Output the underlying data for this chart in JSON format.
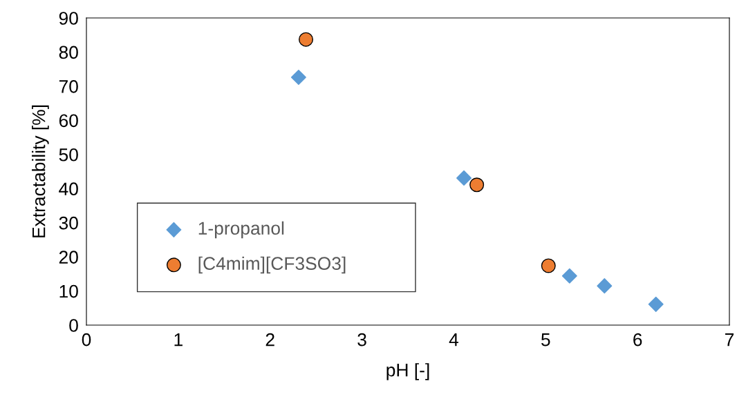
{
  "chart_data": {
    "type": "scatter",
    "xlabel": "pH [-]",
    "ylabel": "Extractability [%]",
    "xlim": [
      0,
      7
    ],
    "xticks": [
      0,
      1,
      2,
      3,
      4,
      5,
      6,
      7
    ],
    "ylim": [
      0,
      90
    ],
    "yticks": [
      0,
      10,
      20,
      30,
      40,
      50,
      60,
      70,
      80,
      90
    ],
    "grid": false,
    "legend": "bottom left",
    "series": [
      {
        "name": "1-propanol",
        "color": "#5b9bd5",
        "marker": "diamond",
        "x": [
          2.31,
          4.11,
          5.26,
          5.64,
          6.2
        ],
        "values": [
          72.6,
          43.1,
          14.4,
          11.5,
          6.1
        ]
      },
      {
        "name": "[C4mim][CF3SO3]",
        "color": "#ed7d31",
        "marker": "circle",
        "x": [
          2.39,
          4.25,
          5.03
        ],
        "values": [
          83.7,
          41.1,
          17.4
        ]
      }
    ]
  }
}
